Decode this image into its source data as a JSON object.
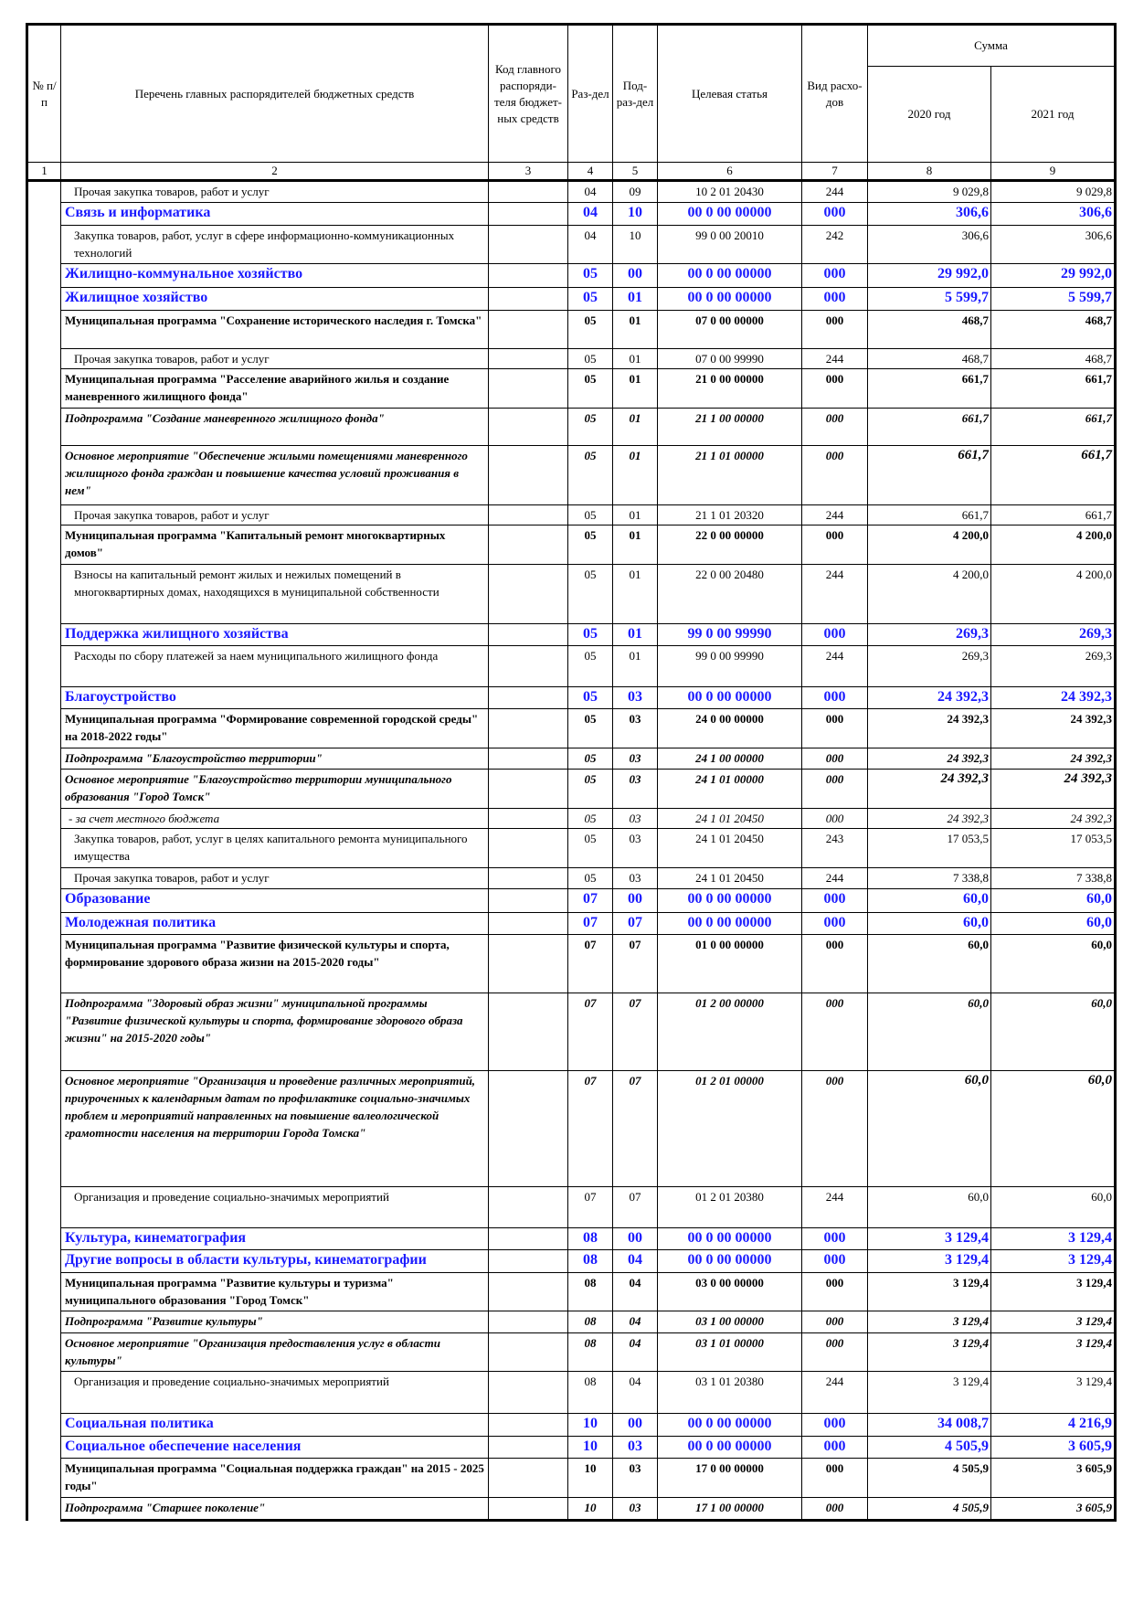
{
  "header": {
    "num": "№ п/п",
    "name": "Перечень главных распорядителей бюджетных средств",
    "code": "Код главного распоряди-теля бюджет-ных средств",
    "razdel": "Раз-дел",
    "podrazdel": "Под-раз-дел",
    "target": "Целевая статья",
    "vid": "Вид расхо-дов",
    "sum": "Сумма",
    "y2020": "2020 год",
    "y2021": "2021 год",
    "col_numbers": [
      "1",
      "2",
      "3",
      "4",
      "5",
      "6",
      "7",
      "8",
      "9"
    ]
  },
  "colors": {
    "section": "#1a1aff"
  },
  "rows": [
    {
      "type": "normal",
      "text": "Прочая закупка товаров, работ и услуг",
      "r": "04",
      "p": "09",
      "cs": "10 2 01 20430",
      "v": "244",
      "a": "9 029,8",
      "b": "9 029,8"
    },
    {
      "type": "blue",
      "text": "Связь и информатика",
      "r": "04",
      "p": "10",
      "cs": "00 0 00 00000",
      "v": "000",
      "a": "306,6",
      "b": "306,6"
    },
    {
      "type": "normal",
      "text": "Закупка товаров, работ, услуг в сфере информационно-коммуникационных технологий",
      "r": "04",
      "p": "10",
      "cs": "99 0 00 20010",
      "v": "242",
      "a": "306,6",
      "b": "306,6"
    },
    {
      "type": "blue",
      "text": "Жилищно-коммунальное хозяйство",
      "r": "05",
      "p": "00",
      "cs": "00 0 00 00000",
      "v": "000",
      "a": "29 992,0",
      "b": "29 992,0"
    },
    {
      "type": "blue",
      "text": "Жилищное хозяйство",
      "r": "05",
      "p": "01",
      "cs": "00 0 00 00000",
      "v": "000",
      "a": "5 599,7",
      "b": "5 599,7"
    },
    {
      "type": "bold",
      "text": "Муниципальная программа \"Сохранение исторического наследия г. Томска\"",
      "r": "05",
      "p": "01",
      "cs": "07 0 00 00000",
      "v": "000",
      "a": "468,7",
      "b": "468,7"
    },
    {
      "type": "normal",
      "text": "Прочая закупка товаров, работ и услуг",
      "r": "05",
      "p": "01",
      "cs": "07 0 00 99990",
      "v": "244",
      "a": "468,7",
      "b": "468,7"
    },
    {
      "type": "bold",
      "text": "Муниципальная программа \"Расселение аварийного жилья и создание маневренного жилищного фонда\"",
      "r": "05",
      "p": "01",
      "cs": "21 0 00 00000",
      "v": "000",
      "a": "661,7",
      "b": "661,7"
    },
    {
      "type": "bi",
      "text": "Подпрограмма \"Создание маневренного жилищного фонда\"",
      "r": "05",
      "p": "01",
      "cs": "21 1 00 00000",
      "v": "000",
      "a": "661,7",
      "b": "661,7"
    },
    {
      "type": "bi big",
      "text": "Основное мероприятие \"Обеспечение жилыми помещениями маневренного жилищного фонда граждан и повышение качества условий проживания в нем\"",
      "r": "05",
      "p": "01",
      "cs": "21 1 01 00000",
      "v": "000",
      "a": "661,7",
      "b": "661,7"
    },
    {
      "type": "normal",
      "text": "Прочая закупка товаров, работ и услуг",
      "r": "05",
      "p": "01",
      "cs": "21 1 01 20320",
      "v": "244",
      "a": "661,7",
      "b": "661,7"
    },
    {
      "type": "bold",
      "text": "Муниципальная программа \"Капитальный ремонт многоквартирных домов\"",
      "r": "05",
      "p": "01",
      "cs": "22 0 00 00000",
      "v": "000",
      "a": "4 200,0",
      "b": "4 200,0"
    },
    {
      "type": "normal",
      "text": "Взносы на капитальный ремонт жилых и нежилых помещений в многоквартирных домах, находящихся в муниципальной собственности",
      "r": "05",
      "p": "01",
      "cs": "22 0 00 20480",
      "v": "244",
      "a": "4 200,0",
      "b": "4 200,0"
    },
    {
      "type": "blue",
      "text": "Поддержка жилищного хозяйства",
      "r": "05",
      "p": "01",
      "cs": "99 0 00 99990",
      "v": "000",
      "a": "269,3",
      "b": "269,3"
    },
    {
      "type": "normal",
      "text": "Расходы по сбору платежей за наем муниципального жилищного фонда",
      "r": "05",
      "p": "01",
      "cs": "99 0 00 99990",
      "v": "244",
      "a": "269,3",
      "b": "269,3"
    },
    {
      "type": "blue",
      "text": "Благоустройство",
      "r": "05",
      "p": "03",
      "cs": "00 0 00 00000",
      "v": "000",
      "a": "24 392,3",
      "b": "24 392,3"
    },
    {
      "type": "bold",
      "text": "Муниципальная программа \"Формирование современной городской среды\" на 2018-2022 годы\"",
      "r": "05",
      "p": "03",
      "cs": "24 0 00 00000",
      "v": "000",
      "a": "24 392,3",
      "b": "24 392,3"
    },
    {
      "type": "bi",
      "text": "Подпрограмма \"Благоустройство территории\"",
      "r": "05",
      "p": "03",
      "cs": "24 1 00 00000",
      "v": "000",
      "a": "24 392,3",
      "b": "24 392,3"
    },
    {
      "type": "bi big",
      "text": "Основное мероприятие \"Благоустройство территории муниципального образования \"Город Томск\"",
      "r": "05",
      "p": "03",
      "cs": "24 1 01 00000",
      "v": "000",
      "a": "24 392,3",
      "b": "24 392,3"
    },
    {
      "type": "italic",
      "text": "- за счет местного бюджета",
      "r": "05",
      "p": "03",
      "cs": "24 1 01 20450",
      "v": "000",
      "a": "24 392,3",
      "b": "24 392,3"
    },
    {
      "type": "normal",
      "text": "Закупка товаров, работ, услуг в целях капитального ремонта муниципального имущества",
      "r": "05",
      "p": "03",
      "cs": "24 1 01 20450",
      "v": "243",
      "a": "17 053,5",
      "b": "17 053,5"
    },
    {
      "type": "normal",
      "text": "Прочая закупка товаров, работ и услуг",
      "r": "05",
      "p": "03",
      "cs": "24 1 01 20450",
      "v": "244",
      "a": "7 338,8",
      "b": "7 338,8"
    },
    {
      "type": "blue",
      "text": "Образование",
      "r": "07",
      "p": "00",
      "cs": "00 0 00 00000",
      "v": "000",
      "a": "60,0",
      "b": "60,0"
    },
    {
      "type": "blue",
      "text": "Молодежная политика",
      "r": "07",
      "p": "07",
      "cs": "00 0 00 00000",
      "v": "000",
      "a": "60,0",
      "b": "60,0"
    },
    {
      "type": "bold",
      "text": "Муниципальная программа \"Развитие физической культуры и спорта, формирование здорового образа жизни на 2015-2020 годы\"",
      "r": "07",
      "p": "07",
      "cs": "01 0 00 00000",
      "v": "000",
      "a": "60,0",
      "b": "60,0"
    },
    {
      "type": "bi",
      "text": "Подпрограмма \"Здоровый образ жизни\" муниципальной программы \"Развитие физической культуры и спорта, формирование здорового образа жизни\" на 2015-2020 годы\"",
      "r": "07",
      "p": "07",
      "cs": "01 2 00 00000",
      "v": "000",
      "a": "60,0",
      "b": "60,0"
    },
    {
      "type": "bi big",
      "text": "Основное мероприятие \"Организация и проведение различных мероприятий, приуроченных к календарным датам по профилактике социально-значимых проблем и мероприятий направленных на повышение валеологической грамотности населения на территории Города Томска\"",
      "r": "07",
      "p": "07",
      "cs": "01 2 01 00000",
      "v": "000",
      "a": "60,0",
      "b": "60,0"
    },
    {
      "type": "normal",
      "text": "Организация и проведение социально-значимых мероприятий",
      "r": "07",
      "p": "07",
      "cs": "01 2 01 20380",
      "v": "244",
      "a": "60,0",
      "b": "60,0"
    },
    {
      "type": "blue",
      "text": "Культура, кинематография",
      "r": "08",
      "p": "00",
      "cs": "00 0 00 00000",
      "v": "000",
      "a": "3 129,4",
      "b": "3 129,4"
    },
    {
      "type": "blue",
      "text": "Другие вопросы в области культуры, кинематографии",
      "r": "08",
      "p": "04",
      "cs": "00 0 00 00000",
      "v": "000",
      "a": "3 129,4",
      "b": "3 129,4"
    },
    {
      "type": "bold",
      "text": "Муниципальная программа \"Развитие культуры и туризма\" муниципального образования \"Город Томск\"",
      "r": "08",
      "p": "04",
      "cs": "03 0 00 00000",
      "v": "000",
      "a": "3 129,4",
      "b": "3 129,4"
    },
    {
      "type": "bi",
      "text": "Подпрограмма \"Развитие культуры\"",
      "r": "08",
      "p": "04",
      "cs": "03 1 00 00000",
      "v": "000",
      "a": "3 129,4",
      "b": "3 129,4"
    },
    {
      "type": "bi",
      "text": "Основное мероприятие \"Организация предоставления услуг в области культуры\"",
      "r": "08",
      "p": "04",
      "cs": "03 1 01 00000",
      "v": "000",
      "a": "3 129,4",
      "b": "3 129,4"
    },
    {
      "type": "normal",
      "text": "Организация и проведение социально-значимых мероприятий",
      "r": "08",
      "p": "04",
      "cs": "03 1 01 20380",
      "v": "244",
      "a": "3 129,4",
      "b": "3 129,4"
    },
    {
      "type": "blue",
      "text": "Социальная политика",
      "r": "10",
      "p": "00",
      "cs": "00 0 00 00000",
      "v": "000",
      "a": "34 008,7",
      "b": "4 216,9"
    },
    {
      "type": "blue",
      "text": "Социальное обеспечение населения",
      "r": "10",
      "p": "03",
      "cs": "00 0 00 00000",
      "v": "000",
      "a": "4 505,9",
      "b": "3 605,9"
    },
    {
      "type": "bold",
      "text": "Муниципальная программа \"Социальная поддержка граждан\" на 2015 - 2025 годы\"",
      "r": "10",
      "p": "03",
      "cs": "17 0 00 00000",
      "v": "000",
      "a": "4 505,9",
      "b": "3 605,9"
    },
    {
      "type": "bi",
      "text": "Подпрограмма \"Старшее поколение\"",
      "r": "10",
      "p": "03",
      "cs": "17 1 00 00000",
      "v": "000",
      "a": "4 505,9",
      "b": "3 605,9"
    }
  ]
}
